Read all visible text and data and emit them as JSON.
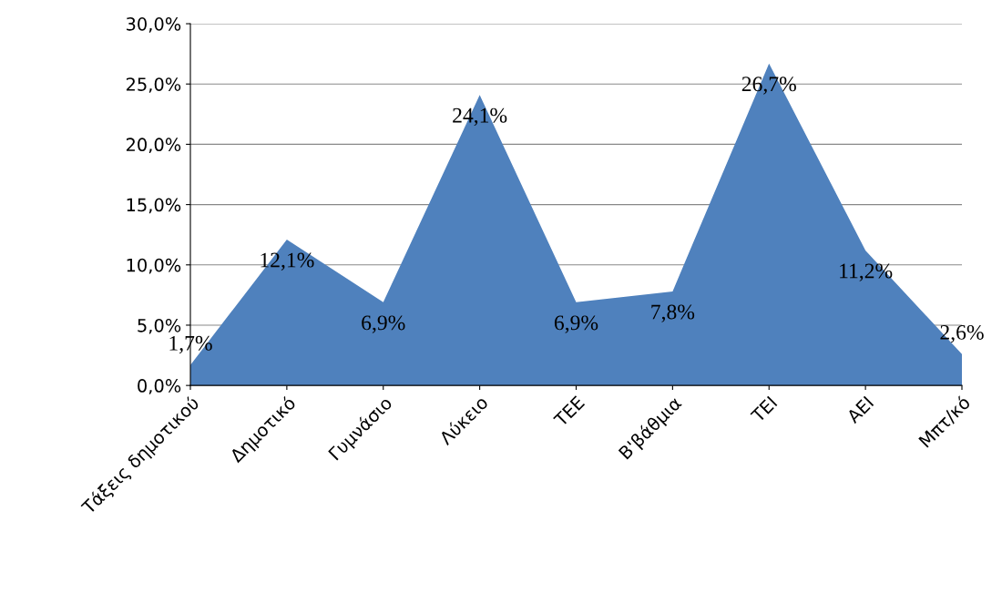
{
  "chart_data": {
    "type": "area",
    "categories": [
      "Τάξεις δημοτικού",
      "Δημοτικό",
      "Γυμνάσιο",
      "Λύκειο",
      "ΤΕΕ",
      "Β'βάθμια",
      "ΤΕΙ",
      "ΑΕΙ",
      "Μπτ/κό"
    ],
    "values": [
      1.7,
      12.1,
      6.9,
      24.1,
      6.9,
      7.8,
      26.7,
      11.2,
      2.6
    ],
    "value_labels": [
      "1,7%",
      "12,1%",
      "6,9%",
      "24,1%",
      "6,9%",
      "7,8%",
      "26,7%",
      "11,2%",
      "2,6%"
    ],
    "color": "#4f81bd",
    "ylim": [
      0,
      30
    ],
    "yticks": [
      {
        "value": 0,
        "label": "0,0%"
      },
      {
        "value": 5,
        "label": "5,0%"
      },
      {
        "value": 10,
        "label": "10,0%"
      },
      {
        "value": 15,
        "label": "15,0%"
      },
      {
        "value": 20,
        "label": "20,0%"
      },
      {
        "value": 25,
        "label": "25,0%"
      },
      {
        "value": 30,
        "label": "30,0%"
      }
    ],
    "grid": "y",
    "legend": false
  }
}
